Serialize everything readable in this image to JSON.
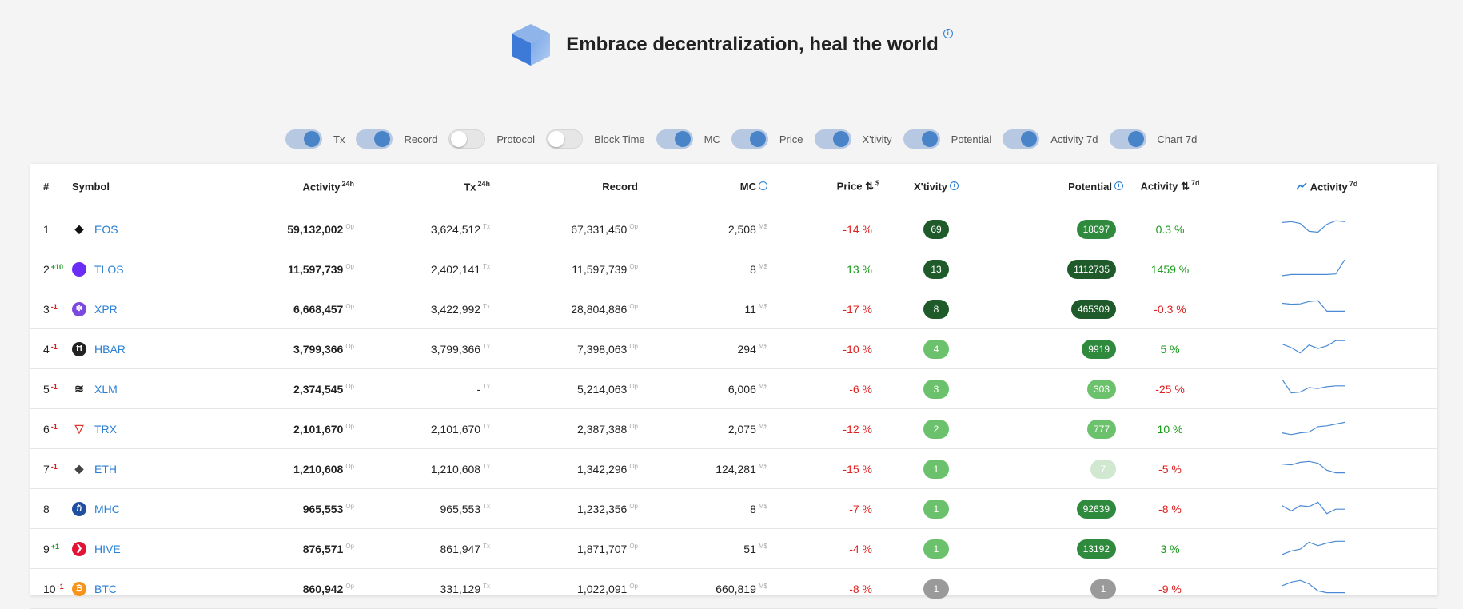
{
  "header": {
    "title": "Embrace decentralization, heal the world"
  },
  "toggles": [
    {
      "label": "Tx",
      "on": true
    },
    {
      "label": "Record",
      "on": true
    },
    {
      "label": "Protocol",
      "on": false
    },
    {
      "label": "Block Time",
      "on": false
    },
    {
      "label": "MC",
      "on": true
    },
    {
      "label": "Price",
      "on": true
    },
    {
      "label": "X'tivity",
      "on": true
    },
    {
      "label": "Potential",
      "on": true
    },
    {
      "label": "Activity 7d",
      "on": true
    },
    {
      "label": "Chart 7d",
      "on": true
    }
  ],
  "columns": {
    "rank": "#",
    "symbol": "Symbol",
    "activity": "Activity",
    "activity_sup": "24h",
    "tx": "Tx",
    "tx_sup": "24h",
    "record": "Record",
    "mc": "MC",
    "price": "Price ⇅",
    "price_sup": "$",
    "xtivity": "X'tivity",
    "potential": "Potential",
    "activity7": "Activity ⇅",
    "activity7_sup": "7d",
    "chart": "Activity",
    "chart_sup": "7d"
  },
  "units": {
    "op": "Op",
    "tx": "Tx",
    "mc": "M$"
  },
  "colors": {
    "link": "#2a7fd4",
    "negative": "#e02020",
    "positive": "#1a9a1a",
    "pill_dark": "#1e5a2a",
    "pill_mid": "#2f8a3e",
    "pill_light": "#6cc26c",
    "pill_faint": "#cfe8cf",
    "pill_gray": "#9a9a9a",
    "spark": "#4a8ad4"
  },
  "rows": [
    {
      "rank": "1",
      "delta": "",
      "dir": "",
      "symbol": "EOS",
      "icon": "eos-icon",
      "icon_color": "#111",
      "activity": "59,132,002",
      "tx": "3,624,512",
      "record": "67,331,450",
      "mc": "2,508",
      "price": "-14 %",
      "price_dir": "neg",
      "xtivity": "69",
      "xtivity_tone": "dark",
      "potential": "18097",
      "potential_tone": "mid",
      "act7": "0.3 %",
      "act7_dir": "pos",
      "spark": [
        0.8,
        0.85,
        0.75,
        0.3,
        0.25,
        0.7,
        0.9,
        0.85
      ]
    },
    {
      "rank": "2",
      "delta": "+10",
      "dir": "up",
      "symbol": "TLOS",
      "icon": "telos-icon",
      "icon_color": "#6b2cf5",
      "activity": "11,597,739",
      "tx": "2,402,141",
      "record": "11,597,739",
      "mc": "8",
      "price": "13 %",
      "price_dir": "pos",
      "xtivity": "13",
      "xtivity_tone": "dark",
      "potential": "1112735",
      "potential_tone": "dark",
      "act7": "1459 %",
      "act7_dir": "pos",
      "spark": [
        0.05,
        0.12,
        0.12,
        0.12,
        0.12,
        0.12,
        0.15,
        0.95
      ]
    },
    {
      "rank": "3",
      "delta": "-1",
      "dir": "down",
      "symbol": "XPR",
      "icon": "xpr-icon",
      "icon_color": "#7b49e0",
      "activity": "6,668,457",
      "tx": "3,422,992",
      "record": "28,804,886",
      "mc": "11",
      "price": "-17 %",
      "price_dir": "neg",
      "xtivity": "8",
      "xtivity_tone": "dark",
      "potential": "465309",
      "potential_tone": "dark",
      "act7": "-0.3 %",
      "act7_dir": "neg",
      "spark": [
        0.75,
        0.7,
        0.72,
        0.85,
        0.9,
        0.3,
        0.3,
        0.3
      ]
    },
    {
      "rank": "4",
      "delta": "-1",
      "dir": "down",
      "symbol": "HBAR",
      "icon": "hbar-icon",
      "icon_color": "#222",
      "activity": "3,799,366",
      "tx": "3,799,366",
      "record": "7,398,063",
      "mc": "294",
      "price": "-10 %",
      "price_dir": "neg",
      "xtivity": "4",
      "xtivity_tone": "light",
      "potential": "9919",
      "potential_tone": "mid",
      "act7": "5 %",
      "act7_dir": "pos",
      "spark": [
        0.7,
        0.5,
        0.2,
        0.65,
        0.45,
        0.6,
        0.9,
        0.9
      ]
    },
    {
      "rank": "5",
      "delta": "-1",
      "dir": "down",
      "symbol": "XLM",
      "icon": "xlm-icon",
      "icon_color": "#222",
      "activity": "2,374,545",
      "tx": "-",
      "record": "5,214,063",
      "mc": "6,006",
      "price": "-6 %",
      "price_dir": "neg",
      "xtivity": "3",
      "xtivity_tone": "light",
      "potential": "303",
      "potential_tone": "light",
      "act7": "-25 %",
      "act7_dir": "neg",
      "spark": [
        0.95,
        0.2,
        0.25,
        0.5,
        0.45,
        0.55,
        0.6,
        0.6
      ]
    },
    {
      "rank": "6",
      "delta": "-1",
      "dir": "down",
      "symbol": "TRX",
      "icon": "trx-icon",
      "icon_color": "#e0382f",
      "activity": "2,101,670",
      "tx": "2,101,670",
      "record": "2,387,388",
      "mc": "2,075",
      "price": "-12 %",
      "price_dir": "neg",
      "xtivity": "2",
      "xtivity_tone": "light",
      "potential": "777",
      "potential_tone": "light",
      "act7": "10 %",
      "act7_dir": "pos",
      "spark": [
        0.2,
        0.1,
        0.2,
        0.25,
        0.55,
        0.6,
        0.7,
        0.8
      ]
    },
    {
      "rank": "7",
      "delta": "-1",
      "dir": "down",
      "symbol": "ETH",
      "icon": "eth-icon",
      "icon_color": "#444",
      "activity": "1,210,608",
      "tx": "1,210,608",
      "record": "1,342,296",
      "mc": "124,281",
      "price": "-15 %",
      "price_dir": "neg",
      "xtivity": "1",
      "xtivity_tone": "light",
      "potential": "7",
      "potential_tone": "faint",
      "act7": "-5 %",
      "act7_dir": "neg",
      "spark": [
        0.7,
        0.65,
        0.8,
        0.85,
        0.75,
        0.35,
        0.2,
        0.2
      ]
    },
    {
      "rank": "8",
      "delta": "",
      "dir": "",
      "symbol": "MHC",
      "icon": "mhc-icon",
      "icon_color": "#1e4fa0",
      "activity": "965,553",
      "tx": "965,553",
      "record": "1,232,356",
      "mc": "8",
      "price": "-7 %",
      "price_dir": "neg",
      "xtivity": "1",
      "xtivity_tone": "light",
      "potential": "92639",
      "potential_tone": "mid",
      "act7": "-8 %",
      "act7_dir": "neg",
      "spark": [
        0.6,
        0.3,
        0.6,
        0.55,
        0.8,
        0.15,
        0.4,
        0.4
      ]
    },
    {
      "rank": "9",
      "delta": "+1",
      "dir": "up",
      "symbol": "HIVE",
      "icon": "hive-icon",
      "icon_color": "#e31337",
      "activity": "876,571",
      "tx": "861,947",
      "record": "1,871,707",
      "mc": "51",
      "price": "-4 %",
      "price_dir": "neg",
      "xtivity": "1",
      "xtivity_tone": "light",
      "potential": "13192",
      "potential_tone": "mid",
      "act7": "3 %",
      "act7_dir": "pos",
      "spark": [
        0.1,
        0.3,
        0.4,
        0.8,
        0.6,
        0.75,
        0.85,
        0.85
      ]
    },
    {
      "rank": "10",
      "delta": "-1",
      "dir": "down",
      "symbol": "BTC",
      "icon": "btc-icon",
      "icon_color": "#f7931a",
      "activity": "860,942",
      "tx": "331,129",
      "record": "1,022,091",
      "mc": "660,819",
      "price": "-8 %",
      "price_dir": "neg",
      "xtivity": "1",
      "xtivity_tone": "gray",
      "potential": "1",
      "potential_tone": "gray",
      "act7": "-9 %",
      "act7_dir": "neg",
      "spark": [
        0.6,
        0.8,
        0.9,
        0.7,
        0.3,
        0.2,
        0.2,
        0.2
      ]
    }
  ]
}
